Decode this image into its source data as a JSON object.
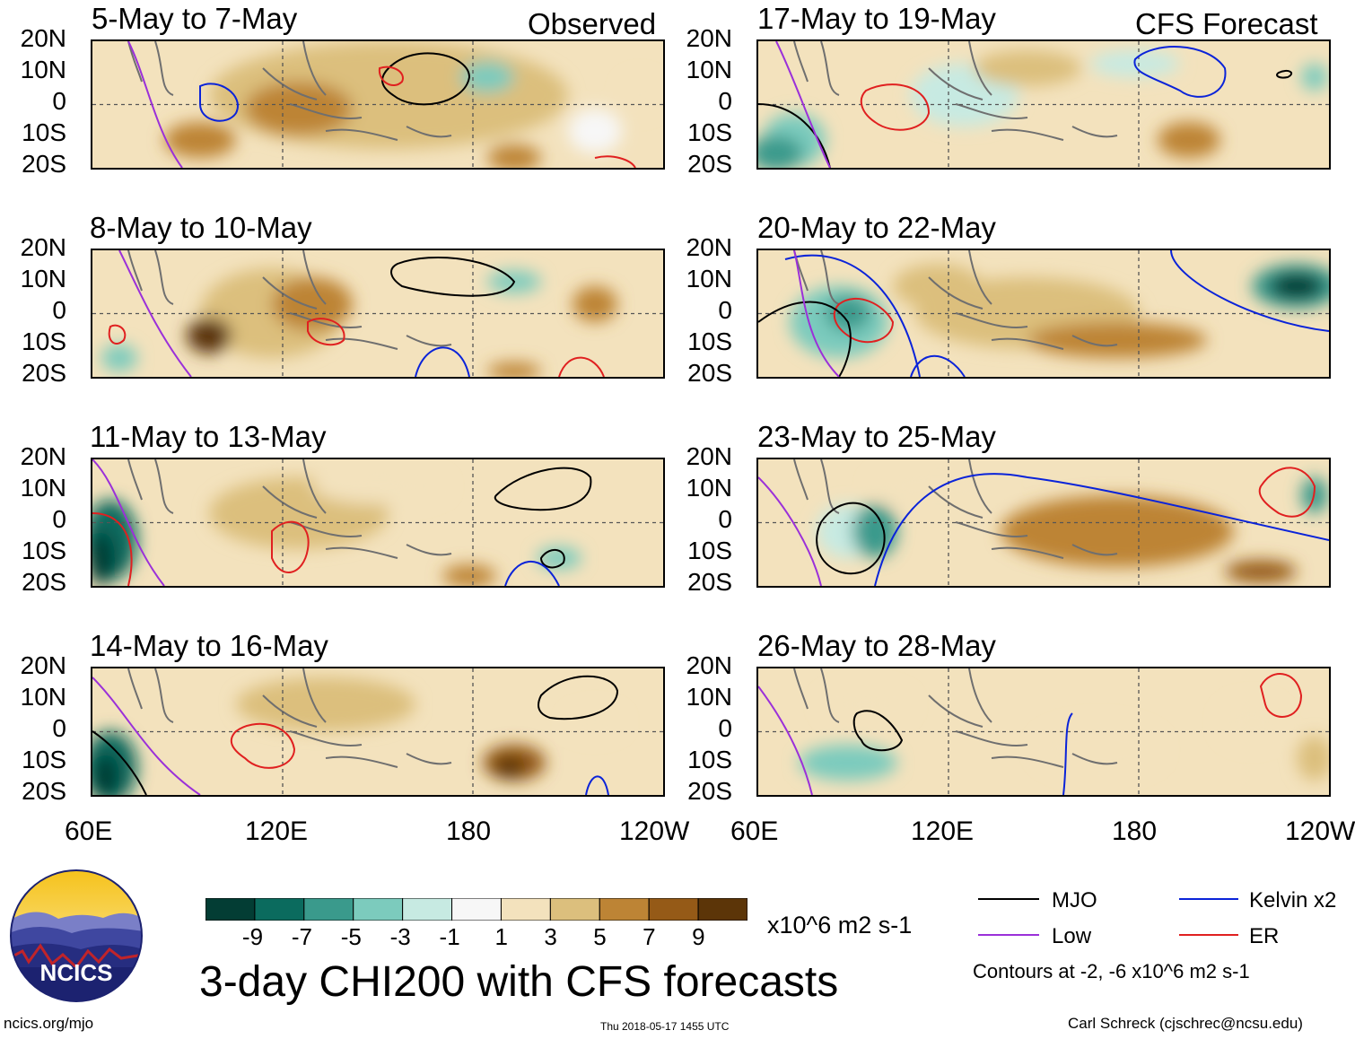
{
  "chart_data": {
    "type": "heatmap",
    "title": "3-day CHI200 with CFS forecasts",
    "units": "x10^6 m2 s-1",
    "columns": [
      {
        "label": "Observed",
        "panels": [
          {
            "title": "5-May to 7-May"
          },
          {
            "title": "8-May to 10-May"
          },
          {
            "title": "11-May to 13-May"
          },
          {
            "title": "14-May to 16-May"
          }
        ]
      },
      {
        "label": "CFS Forecast",
        "panels": [
          {
            "title": "17-May to 19-May"
          },
          {
            "title": "20-May to 22-May"
          },
          {
            "title": "23-May to 25-May"
          },
          {
            "title": "26-May to 28-May"
          }
        ]
      }
    ],
    "ylabels": [
      "20N",
      "10N",
      "0",
      "10S",
      "20S"
    ],
    "xlabels": [
      "60E",
      "120E",
      "180",
      "120W"
    ],
    "colorbar": {
      "ticks": [
        "-9",
        "-7",
        "-5",
        "-3",
        "-1",
        "1",
        "3",
        "5",
        "7",
        "9"
      ],
      "colors": [
        "#033d34",
        "#0b6b5e",
        "#3a9a8c",
        "#7ccbbd",
        "#c7eae2",
        "#f7f7f7",
        "#f3e2bd",
        "#dcbf7d",
        "#bd8435",
        "#955a17",
        "#5c3508"
      ]
    },
    "legend": {
      "items": [
        {
          "label": "MJO",
          "color": "#000000"
        },
        {
          "label": "Kelvin x2",
          "color": "#0a23d9"
        },
        {
          "label": "Low",
          "color": "#9b30d9"
        },
        {
          "label": "ER",
          "color": "#e02020"
        }
      ],
      "note": "Contours at -2, -6 x10^6 m2 s-1"
    }
  },
  "logo": {
    "text": "NCICS"
  },
  "footer": {
    "url": "ncics.org/mjo",
    "timestamp": "Thu 2018-05-17 1455 UTC",
    "author": "Carl Schreck (cjschrec@ncsu.edu)"
  }
}
